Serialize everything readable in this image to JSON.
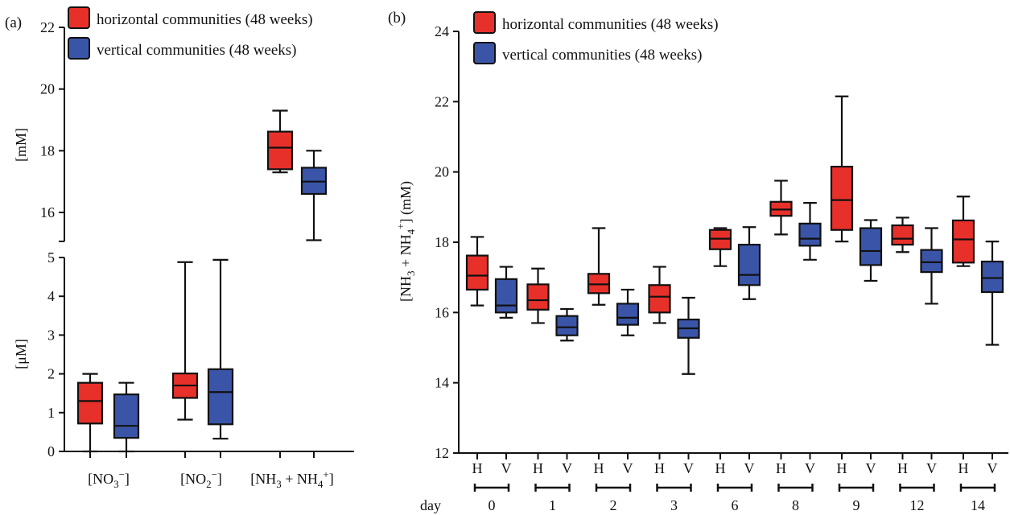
{
  "colors": {
    "horizontal": "#e8302a",
    "vertical": "#3a55a8",
    "stroke": "#111111"
  },
  "chart_data": [
    {
      "panel": "(a)",
      "type": "boxplot",
      "legend": [
        "horizontal communities (48 weeks)",
        "vertical communities (48 weeks)"
      ],
      "legend_placement": "top-right",
      "upper_axis": {
        "ylabel": "[mM]",
        "ylim": [
          15,
          22
        ],
        "ticks": [
          16,
          18,
          20,
          22
        ]
      },
      "lower_axis": {
        "ylabel": "[μM]",
        "ylim": [
          0,
          5
        ],
        "ticks": [
          0,
          1,
          2,
          3,
          4,
          5
        ]
      },
      "groups": [
        {
          "label_main": "[NO",
          "label_sub": "3",
          "label_sup": "−",
          "label_end": "]",
          "axis": "lower",
          "boxes": [
            {
              "series": "horizontal",
              "min": 0,
              "q1": 0.72,
              "median": 1.3,
              "q3": 1.77,
              "max": 2.0
            },
            {
              "series": "vertical",
              "min": 0,
              "q1": 0.35,
              "median": 0.66,
              "q3": 1.47,
              "max": 1.77
            }
          ]
        },
        {
          "label_main": "[NO",
          "label_sub": "2",
          "label_sup": "−",
          "label_end": "]",
          "axis": "lower",
          "boxes": [
            {
              "series": "horizontal",
              "min": 0.82,
              "q1": 1.38,
              "median": 1.7,
              "q3": 2.01,
              "max": 4.88
            },
            {
              "series": "vertical",
              "min": 0.33,
              "q1": 0.7,
              "median": 1.53,
              "q3": 2.12,
              "max": 4.94
            }
          ]
        },
        {
          "label_main": "[NH",
          "label_sub": "3",
          "label_mid": " + NH",
          "label_sub2": "4",
          "label_sup2": "+",
          "label_end": "]",
          "axis": "upper",
          "boxes": [
            {
              "series": "horizontal",
              "min": 17.3,
              "q1": 17.4,
              "median": 18.1,
              "q3": 18.62,
              "max": 19.3
            },
            {
              "series": "vertical",
              "min": 15.1,
              "q1": 16.6,
              "median": 17.0,
              "q3": 17.45,
              "max": 18.0
            }
          ]
        }
      ]
    },
    {
      "panel": "(b)",
      "type": "boxplot",
      "legend": [
        "horizontal communities (48 weeks)",
        "vertical communities (48 weeks)"
      ],
      "legend_placement": "top-left",
      "ylabel_main": "[NH",
      "ylabel_sub": "3",
      "ylabel_mid": " + NH",
      "ylabel_sub2": "4",
      "ylabel_sup2": "+",
      "ylabel_end": "] (mM)",
      "ylim": [
        12,
        24
      ],
      "yticks": [
        12,
        14,
        16,
        18,
        20,
        22,
        24
      ],
      "xlabel": "day",
      "box_labels": [
        "H",
        "V"
      ],
      "days": [
        {
          "day": "0",
          "H": [
            16.2,
            16.65,
            17.05,
            17.62,
            18.15
          ],
          "V": [
            15.85,
            16.0,
            16.2,
            16.95,
            17.3
          ]
        },
        {
          "day": "1",
          "H": [
            15.7,
            16.08,
            16.35,
            16.8,
            17.25
          ],
          "V": [
            15.2,
            15.35,
            15.58,
            15.9,
            16.1
          ]
        },
        {
          "day": "2",
          "H": [
            16.22,
            16.55,
            16.8,
            17.1,
            18.4
          ],
          "V": [
            15.35,
            15.65,
            15.85,
            16.25,
            16.65
          ]
        },
        {
          "day": "3",
          "H": [
            15.7,
            16.0,
            16.45,
            16.78,
            17.3
          ],
          "V": [
            14.25,
            15.28,
            15.55,
            15.8,
            16.42
          ]
        },
        {
          "day": "6",
          "H": [
            17.32,
            17.8,
            18.1,
            18.35,
            18.4
          ],
          "V": [
            16.38,
            16.78,
            17.07,
            17.93,
            18.43
          ]
        },
        {
          "day": "8",
          "H": [
            18.22,
            18.75,
            18.93,
            19.15,
            19.75
          ],
          "V": [
            17.5,
            17.9,
            18.1,
            18.53,
            19.12
          ]
        },
        {
          "day": "9",
          "H": [
            18.02,
            18.35,
            19.2,
            20.15,
            22.15
          ],
          "V": [
            16.9,
            17.35,
            17.75,
            18.4,
            18.63
          ]
        },
        {
          "day": "12",
          "H": [
            17.72,
            17.93,
            18.1,
            18.48,
            18.7
          ],
          "V": [
            16.25,
            17.15,
            17.43,
            17.78,
            18.4
          ]
        },
        {
          "day": "14",
          "H": [
            17.32,
            17.42,
            18.08,
            18.62,
            19.3
          ],
          "V": [
            15.08,
            16.58,
            16.98,
            17.45,
            18.02
          ]
        }
      ]
    }
  ]
}
